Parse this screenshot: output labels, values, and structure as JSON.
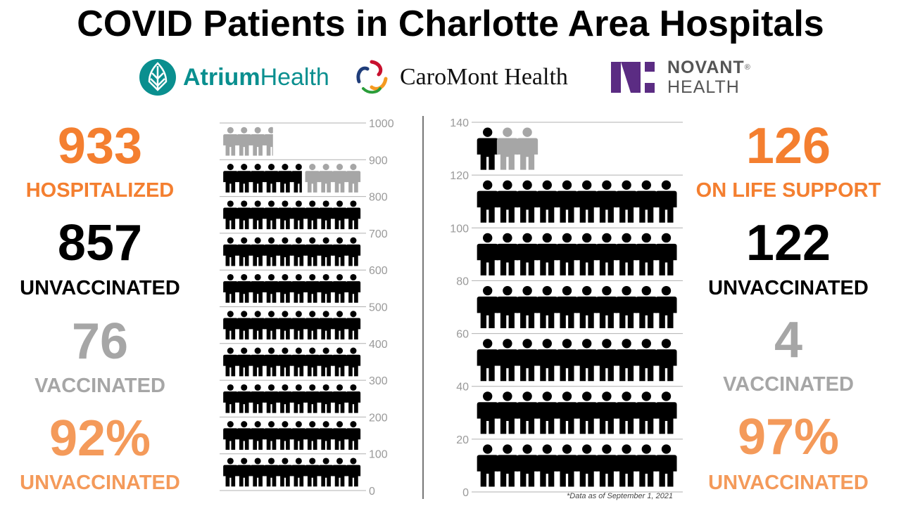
{
  "title": "COVID Patients in Charlotte Area Hospitals",
  "logos": {
    "atrium": {
      "part1": "Atrium",
      "part2": "Health"
    },
    "caromont": "CaroMont Health",
    "novant": {
      "line1": "NOVANT",
      "line2": "HEALTH",
      "mark": "®"
    }
  },
  "left_stats": {
    "hospitalized_value": "933",
    "hospitalized_label": "HOSPITALIZED",
    "unvaccinated_value": "857",
    "unvaccinated_label": "UNVACCINATED",
    "vaccinated_value": "76",
    "vaccinated_label": "VACCINATED",
    "pct_value": "92%",
    "pct_label": "UNVACCINATED"
  },
  "right_stats": {
    "life_support_value": "126",
    "life_support_label": "ON LIFE SUPPORT",
    "unvaccinated_value": "122",
    "unvaccinated_label": "UNVACCINATED",
    "vaccinated_value": "4",
    "vaccinated_label": "VACCINATED",
    "pct_value": "97%",
    "pct_label": "UNVACCINATED"
  },
  "footnote": "*Data as of September 1, 2021",
  "colors": {
    "unvaccinated": "#000000",
    "vaccinated": "#a6a6a6",
    "accent": "#f47f30",
    "caromont_red": "#c8102e",
    "caromont_orange": "#f49a20",
    "caromont_blue": "#1f3d7a",
    "novant_purple": "#5b2c83"
  },
  "chart_data": [
    {
      "type": "pictograph",
      "ylim": [
        0,
        1000
      ],
      "yticks": [
        0,
        100,
        200,
        300,
        400,
        500,
        600,
        700,
        800,
        900,
        1000
      ],
      "yticklabels": [
        "0",
        "100",
        "200",
        "300",
        "400",
        "500",
        "600",
        "700",
        "800",
        "900",
        "1000"
      ],
      "units_per_icon": 10,
      "series": [
        {
          "name": "UNVACCINATED",
          "value": 857,
          "color": "#000000"
        },
        {
          "name": "VACCINATED",
          "value": 76,
          "color": "#a6a6a6"
        }
      ],
      "total": 933
    },
    {
      "type": "pictograph",
      "ylim": [
        0,
        140
      ],
      "yticks": [
        0,
        20,
        40,
        60,
        80,
        100,
        120,
        140
      ],
      "yticklabels": [
        "0",
        "20",
        "40",
        "60",
        "80",
        "100",
        "120",
        "140"
      ],
      "units_per_icon": 2,
      "series": [
        {
          "name": "UNVACCINATED",
          "value": 122,
          "color": "#000000"
        },
        {
          "name": "VACCINATED",
          "value": 4,
          "color": "#a6a6a6"
        }
      ],
      "total": 126
    }
  ]
}
